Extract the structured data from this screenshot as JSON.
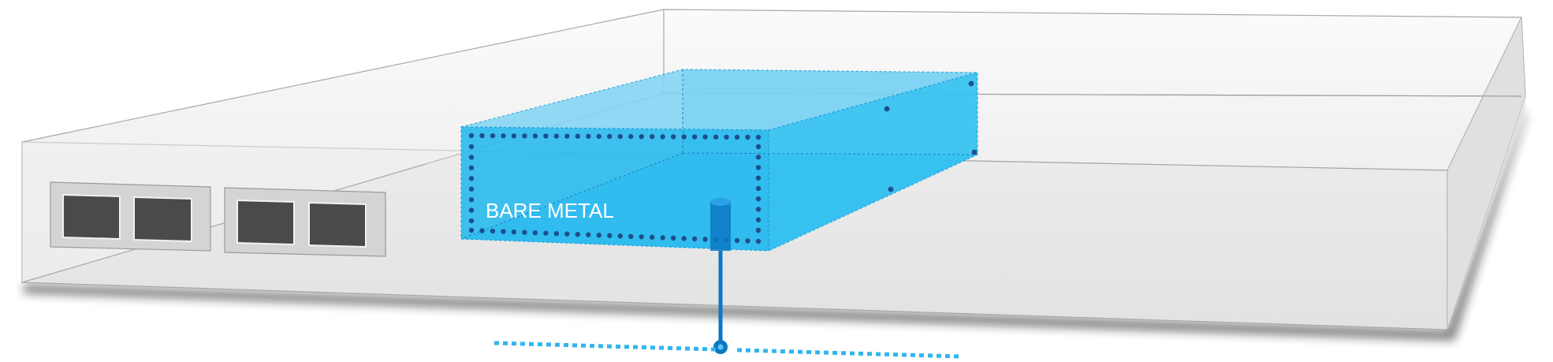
{
  "diagram": {
    "label": "BARE METAL",
    "colors": {
      "chassis_top": "#f7f7f7",
      "chassis_front": "#e6e6e6",
      "chassis_right": "#e0e0e0",
      "chassis_edge": "#9a9a9a",
      "chassis_shadow": "#1a1a1a",
      "port_frame": "#d2d2d2",
      "port_hole": "#4a4a4a",
      "box_fill": "#29bdf0",
      "box_top": "#7fd3f3",
      "box_edge": "#1a9fd8",
      "dots": "#1d4f8c",
      "connector": "#0a78c2",
      "network_dots": "#33b5ec"
    }
  }
}
